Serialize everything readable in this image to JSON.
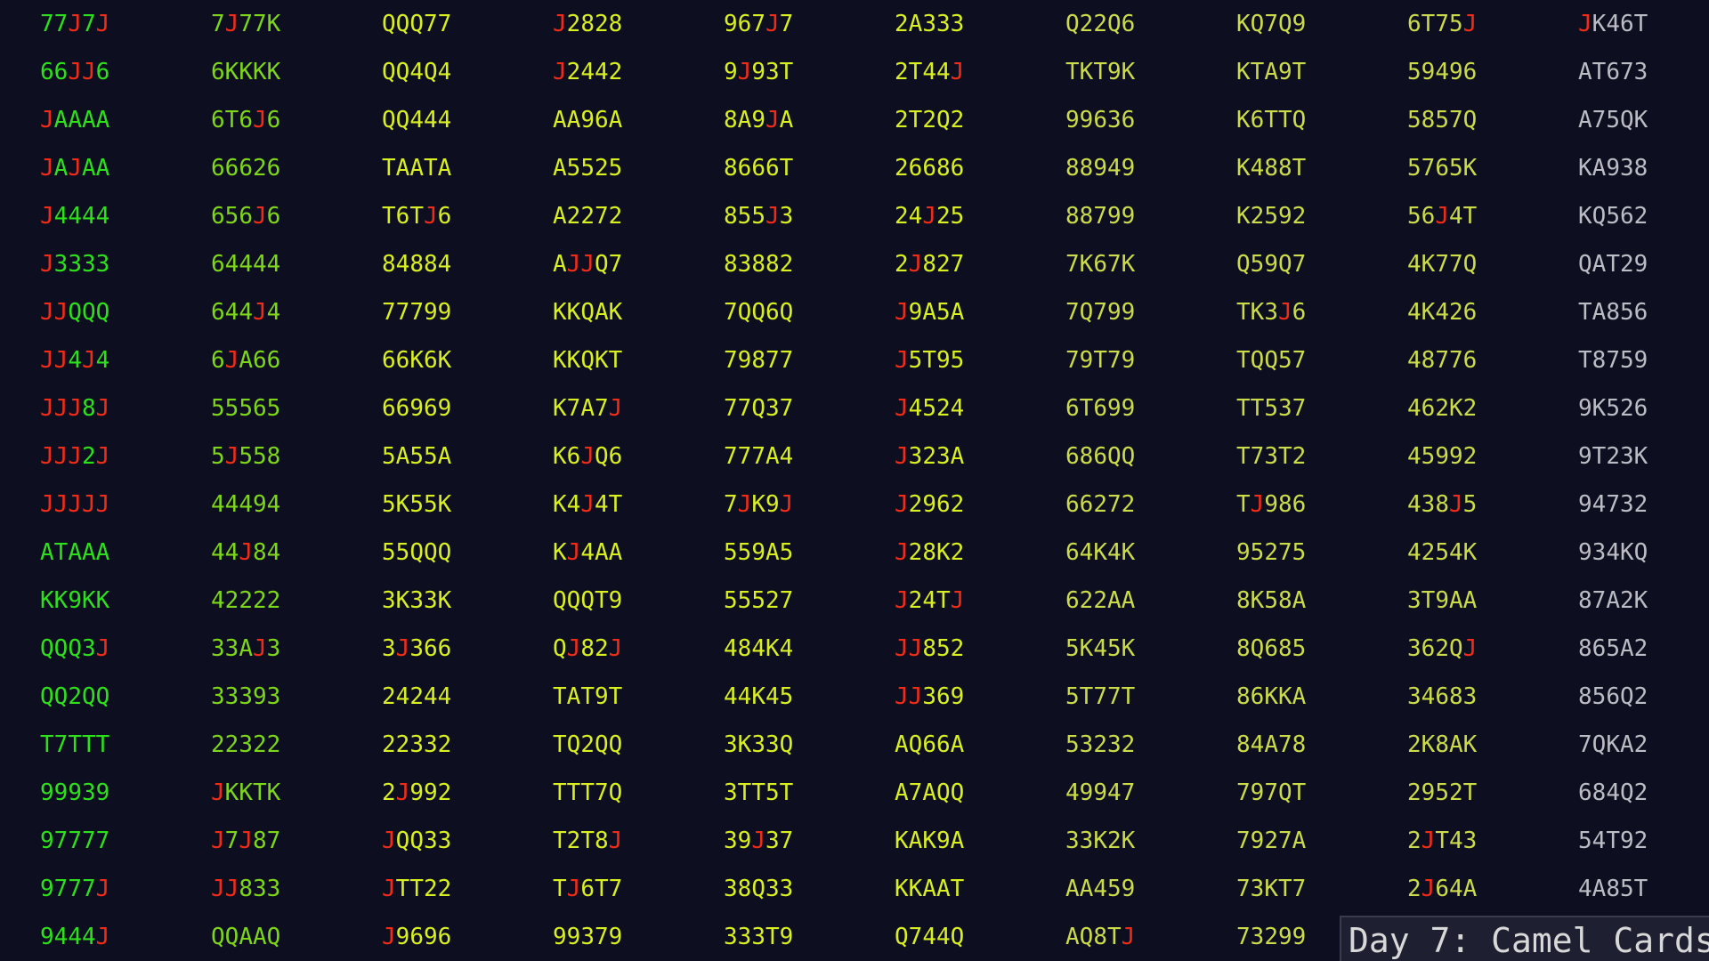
{
  "title": "Day 7: Camel Cards",
  "colors": {
    "background": "#0d0e1f",
    "joker": "#f02c18",
    "green": "#2ee01c",
    "lime": "#7ed61a",
    "yellow": "#d9ef22",
    "khaki": "#ccdb4a",
    "grey": "#bcbcc4",
    "title_box": "#1e1f30"
  },
  "columns": [
    [
      "77J7J",
      "66JJ6",
      "JAAAA",
      "JAJAA",
      "J4444",
      "J3333",
      "JJQQQ",
      "JJ4J4",
      "JJJ8J",
      "JJJ2J",
      "JJJJJ",
      "ATAAA",
      "KK9KK",
      "QQQ3J",
      "QQ2QQ",
      "T7TTT",
      "99939",
      "97777",
      "9777J",
      "9444J"
    ],
    [
      "7J77K",
      "6KKKK",
      "6T6J6",
      "66626",
      "656J6",
      "64444",
      "644J4",
      "6JA66",
      "55565",
      "5J558",
      "44494",
      "44J84",
      "42222",
      "33AJ3",
      "33393",
      "22322",
      "JKKTK",
      "J7J87",
      "JJ833",
      "QQAAQ"
    ],
    [
      "QQQ77",
      "QQ4Q4",
      "QQ444",
      "TAATA",
      "T6TJ6",
      "84884",
      "77799",
      "66K6K",
      "66969",
      "5A55A",
      "5K55K",
      "55QQQ",
      "3K33K",
      "3J366",
      "24244",
      "22332",
      "2J992",
      "JQQ33",
      "JTT22",
      "J9696"
    ],
    [
      "J2828",
      "J2442",
      "AA96A",
      "A5525",
      "A2272",
      "AJJQ7",
      "KKQAK",
      "KKQKT",
      "K7A7J",
      "K6JQ6",
      "K4J4T",
      "KJ4AA",
      "QQQT9",
      "QJ82J",
      "TAT9T",
      "TQ2QQ",
      "TTT7Q",
      "T2T8J",
      "TJ6T7",
      "99379"
    ],
    [
      "967J7",
      "9J93T",
      "8A9JA",
      "8666T",
      "855J3",
      "83882",
      "7QQ6Q",
      "79877",
      "77Q37",
      "777A4",
      "7JK9J",
      "559A5",
      "55527",
      "484K4",
      "44K45",
      "3K33Q",
      "3TT5T",
      "39J37",
      "38Q33",
      "333T9"
    ],
    [
      "2A333",
      "2T44J",
      "2T2Q2",
      "26686",
      "24J25",
      "2J827",
      "J9A5A",
      "J5T95",
      "J4524",
      "J323A",
      "J2962",
      "J28K2",
      "J24TJ",
      "JJ852",
      "JJ369",
      "AQ66A",
      "A7AQQ",
      "KAK9A",
      "KKAAT",
      "Q744Q"
    ],
    [
      "Q22Q6",
      "TKT9K",
      "99636",
      "88949",
      "88799",
      "7K67K",
      "7Q799",
      "79T79",
      "6T699",
      "686QQ",
      "66272",
      "64K4K",
      "622AA",
      "5K45K",
      "5T77T",
      "53232",
      "49947",
      "33K2K",
      "AA459",
      "AQ8TJ"
    ],
    [
      "KQ7Q9",
      "KTA9T",
      "K6TTQ",
      "K488T",
      "K2592",
      "Q59Q7",
      "TK3J6",
      "TQQ57",
      "TT537",
      "T73T2",
      "TJ986",
      "95275",
      "8K58A",
      "8Q685",
      "86KKA",
      "84A78",
      "797QT",
      "7927A",
      "73KT7",
      "73299"
    ],
    [
      "6T75J",
      "59496",
      "5857Q",
      "5765K",
      "56J4T",
      "4K77Q",
      "4K426",
      "48776",
      "462K2",
      "45992",
      "438J5",
      "4254K",
      "3T9AA",
      "362QJ",
      "34683",
      "2K8AK",
      "2952T",
      "2JT43",
      "2J64A",
      ""
    ],
    [
      "JK46T",
      "AT673",
      "A75QK",
      "KA938",
      "KQ562",
      "QAT29",
      "TA856",
      "T8759",
      "9K526",
      "9T23K",
      "94732",
      "934KQ",
      "87A2K",
      "865A2",
      "856Q2",
      "7QKA2",
      "684Q2",
      "54T92",
      "4A85T",
      ""
    ]
  ],
  "column_colors": [
    "green",
    "lime",
    "yellow",
    "yellow",
    "yellow",
    "yellow",
    "khaki",
    "khaki",
    "khaki",
    "grey"
  ],
  "column_overrides": [
    {
      "7": "grey",
      "8": "grey",
      "9": "grey"
    },
    {
      "0": "grey",
      "1": "grey",
      "2": "grey",
      "3": "grey",
      "4": "grey",
      "5": "grey",
      "6": "grey",
      "7": "grey",
      "8": "grey",
      "9": "grey",
      "12": "grey"
    },
    {},
    {
      "1": "grey",
      "2": "grey",
      "3": "grey",
      "4": "grey",
      "5": "grey",
      "6": "grey",
      "7": "grey",
      "8": "grey",
      "9": "grey",
      "Q": "grey",
      "T": "grey"
    },
    {
      "2": "grey",
      "3": "grey",
      "6": "grey",
      "7": "grey",
      "8": "grey",
      "9": "grey",
      "A": "grey",
      "K": "grey",
      "Q": "grey",
      "T": "grey"
    },
    {},
    {},
    {},
    {},
    {}
  ]
}
